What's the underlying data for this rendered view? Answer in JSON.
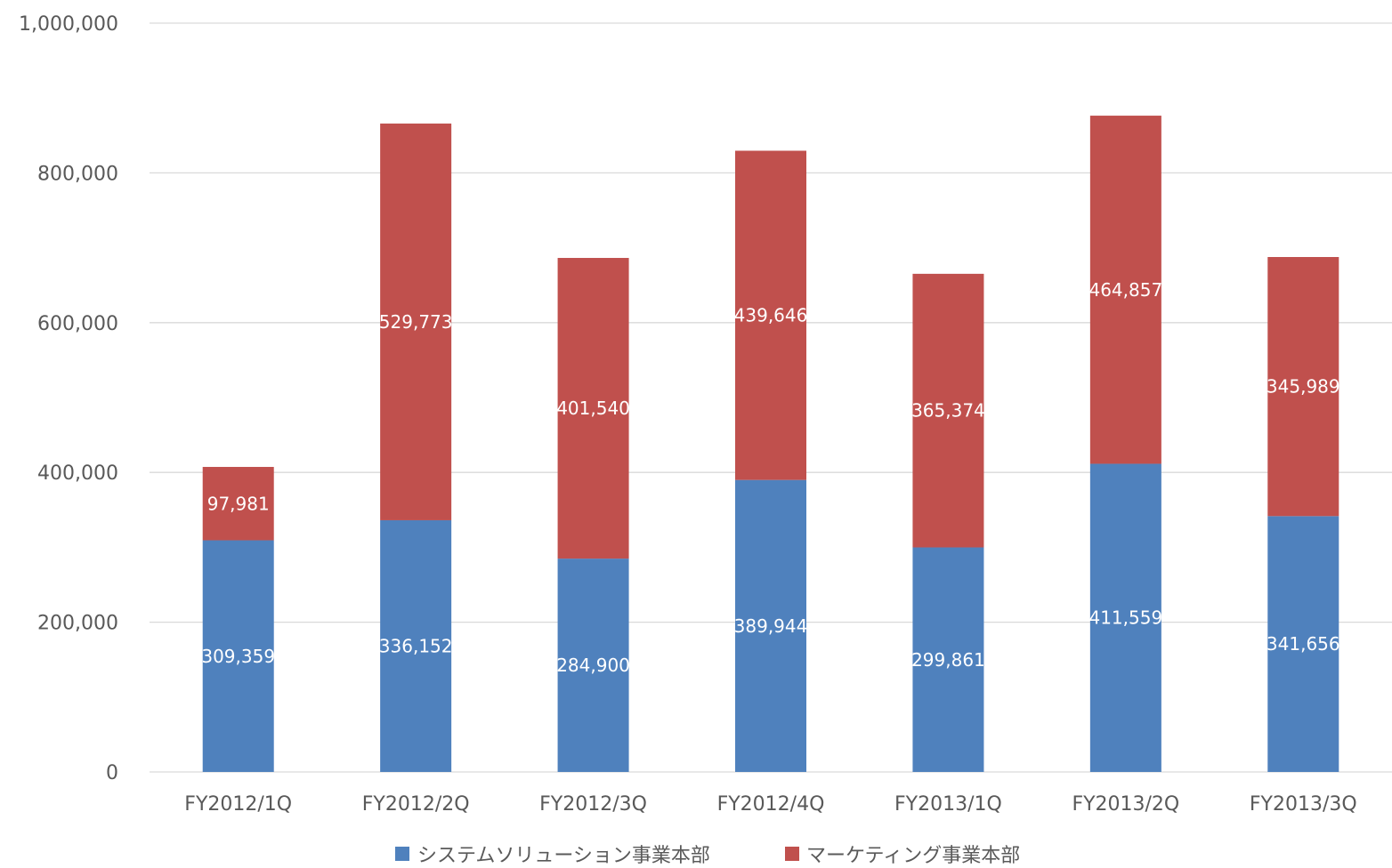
{
  "chart_data": {
    "type": "bar",
    "stacked": true,
    "categories": [
      "FY2012/1Q",
      "FY2012/2Q",
      "FY2012/3Q",
      "FY2012/4Q",
      "FY2013/1Q",
      "FY2013/2Q",
      "FY2013/3Q"
    ],
    "series": [
      {
        "name": "システムソリューション事業本部",
        "color": "#4f81bd",
        "values": [
          309359,
          336152,
          284900,
          389944,
          299861,
          411559,
          341656
        ]
      },
      {
        "name": "マーケティング事業本部",
        "color": "#c0504d",
        "values": [
          97981,
          529773,
          401540,
          439646,
          365374,
          464857,
          345989
        ]
      }
    ],
    "value_labels": [
      [
        "309,359",
        "336,152",
        "284,900",
        "389,944",
        "299,861",
        "411,559",
        "341,656"
      ],
      [
        "97,981",
        "529,773",
        "401,540",
        "439,646",
        "365,374",
        "464,857",
        "345,989"
      ]
    ],
    "ylim": [
      0,
      1000000
    ],
    "yticks": [
      0,
      200000,
      400000,
      600000,
      800000,
      1000000
    ],
    "ytick_labels": [
      "0",
      "200,000",
      "400,000",
      "600,000",
      "800,000",
      "1,000,000"
    ],
    "grid": true,
    "legend_position": "bottom",
    "colors": {
      "grid": "#d9d9d9",
      "text": "#595959",
      "data_label": "#ffffff"
    }
  }
}
